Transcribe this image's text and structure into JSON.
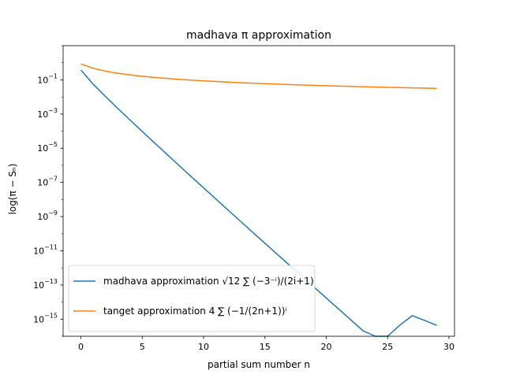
{
  "chart_data": {
    "type": "line",
    "title": "madhava π approximation",
    "xlabel": "partial sum number n",
    "ylabel": "log(π − Sₙ)",
    "xlim": [
      -1.45,
      30.45
    ],
    "ylim": [
      1e-16,
      10
    ],
    "yscale": "log",
    "grid": false,
    "legend_position": "lower-left",
    "x_ticks": [
      0,
      5,
      10,
      15,
      20,
      25,
      30
    ],
    "y_ticks": [
      {
        "exp": -15,
        "label": "10^-15"
      },
      {
        "exp": -13,
        "label": "10^-13"
      },
      {
        "exp": -11,
        "label": "10^-11"
      },
      {
        "exp": -9,
        "label": "10^-9"
      },
      {
        "exp": -7,
        "label": "10^-7"
      },
      {
        "exp": -5,
        "label": "10^-5"
      },
      {
        "exp": -3,
        "label": "10^-3"
      },
      {
        "exp": -1,
        "label": "10^-1"
      }
    ],
    "x": [
      0,
      1,
      2,
      3,
      4,
      5,
      6,
      7,
      8,
      9,
      10,
      11,
      12,
      13,
      14,
      15,
      16,
      17,
      18,
      19,
      20,
      21,
      22,
      23,
      24,
      25,
      26,
      27,
      28,
      29
    ],
    "series": [
      {
        "name": "madhava approximation  √12 ∑ (−3⁻ⁱ)/(2i+1)",
        "color": "#1f77b4",
        "values": [
          0.3775,
          0.0558,
          0.01065,
          0.00215,
          0.000449,
          9.54e-05,
          2.06e-05,
          4.48e-06,
          9.8e-07,
          2.16e-07,
          4.8e-08,
          1.07e-08,
          2.4e-09,
          5.4e-10,
          1.22e-10,
          2.76e-11,
          6.3e-12,
          1.43e-12,
          3.27e-13,
          7.5e-14,
          1.72e-14,
          3.95e-15,
          9.1e-16,
          2.1e-16,
          4.8e-17,
          1.1e-17,
          4.5e-16,
          1.6e-15,
          8.5e-16,
          4.4e-16
        ]
      },
      {
        "name": "tanget approximation  4 ∑ (−1/(2n+1))ⁱ",
        "color": "#ff7f0e",
        "values": [
          0.858,
          0.476,
          0.3244,
          0.2454,
          0.1955,
          0.1626,
          0.1387,
          0.1211,
          0.1075,
          0.0966,
          0.0877,
          0.0803,
          0.0741,
          0.0688,
          0.0641,
          0.06,
          0.0564,
          0.0532,
          0.0504,
          0.0478,
          0.0455,
          0.0434,
          0.0415,
          0.0397,
          0.0381,
          0.0367,
          0.0353,
          0.034,
          0.0328,
          0.0317
        ]
      }
    ]
  }
}
